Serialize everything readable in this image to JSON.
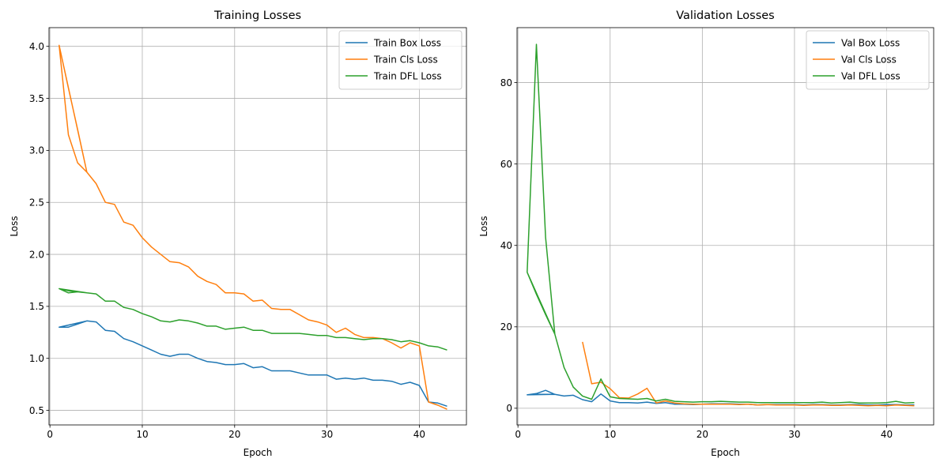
{
  "chart_data": [
    {
      "type": "line",
      "title": "Training Losses",
      "xlabel": "Epoch",
      "ylabel": "Loss",
      "xlim": [
        -0.1,
        45.1
      ],
      "ylim": [
        0.36,
        4.18
      ],
      "xticks": [
        0,
        10,
        20,
        30,
        40
      ],
      "yticks": [
        0.5,
        1.0,
        1.5,
        2.0,
        2.5,
        3.0,
        3.5,
        4.0
      ],
      "grid": true,
      "legend_position": "top-right",
      "series": [
        {
          "name": "Train Box Loss",
          "color": "#1f77b4",
          "x": [
            1,
            2,
            3,
            4,
            1,
            2,
            3,
            4,
            5,
            6,
            7,
            8,
            9,
            10,
            11,
            12,
            13,
            14,
            15,
            16,
            17,
            18,
            19,
            20,
            21,
            22,
            23,
            24,
            25,
            26,
            27,
            28,
            29,
            30,
            31,
            32,
            33,
            34,
            35,
            36,
            37,
            38,
            39,
            40,
            41,
            42,
            43
          ],
          "y": [
            1.3,
            1.3,
            1.33,
            1.36,
            1.3,
            1.32,
            1.34,
            1.36,
            1.35,
            1.27,
            1.26,
            1.19,
            1.16,
            1.12,
            1.08,
            1.04,
            1.02,
            1.04,
            1.04,
            1.0,
            0.97,
            0.96,
            0.94,
            0.94,
            0.95,
            0.91,
            0.92,
            0.88,
            0.88,
            0.88,
            0.86,
            0.84,
            0.84,
            0.84,
            0.8,
            0.81,
            0.8,
            0.81,
            0.79,
            0.79,
            0.78,
            0.75,
            0.77,
            0.74,
            0.58,
            0.57,
            0.54
          ]
        },
        {
          "name": "Train Cls Loss",
          "color": "#ff7f0e",
          "x": [
            1,
            2,
            3,
            4,
            1,
            2,
            3,
            4,
            5,
            6,
            7,
            8,
            9,
            10,
            11,
            12,
            13,
            14,
            15,
            16,
            17,
            18,
            19,
            20,
            21,
            22,
            23,
            24,
            25,
            26,
            27,
            28,
            29,
            30,
            31,
            32,
            33,
            34,
            35,
            36,
            37,
            38,
            39,
            40,
            41,
            42,
            43
          ],
          "y": [
            4.01,
            3.6,
            3.2,
            2.79,
            4.01,
            3.15,
            2.88,
            2.79,
            2.68,
            2.5,
            2.48,
            2.31,
            2.28,
            2.16,
            2.07,
            2.0,
            1.93,
            1.92,
            1.88,
            1.79,
            1.74,
            1.71,
            1.63,
            1.63,
            1.62,
            1.55,
            1.56,
            1.48,
            1.47,
            1.47,
            1.42,
            1.37,
            1.35,
            1.32,
            1.25,
            1.29,
            1.23,
            1.2,
            1.2,
            1.19,
            1.15,
            1.1,
            1.15,
            1.12,
            0.58,
            0.55,
            0.51
          ]
        },
        {
          "name": "Train DFL Loss",
          "color": "#2ca02c",
          "x": [
            1,
            2,
            3,
            4,
            1,
            2,
            3,
            4,
            5,
            6,
            7,
            8,
            9,
            10,
            11,
            12,
            13,
            14,
            15,
            16,
            17,
            18,
            19,
            20,
            21,
            22,
            23,
            24,
            25,
            26,
            27,
            28,
            29,
            30,
            31,
            32,
            33,
            34,
            35,
            36,
            37,
            38,
            39,
            40,
            41,
            42,
            43
          ],
          "y": [
            1.67,
            1.65,
            1.64,
            1.63,
            1.67,
            1.63,
            1.64,
            1.63,
            1.62,
            1.55,
            1.55,
            1.49,
            1.47,
            1.43,
            1.4,
            1.36,
            1.35,
            1.37,
            1.36,
            1.34,
            1.31,
            1.31,
            1.28,
            1.29,
            1.3,
            1.27,
            1.27,
            1.24,
            1.24,
            1.24,
            1.24,
            1.23,
            1.22,
            1.22,
            1.2,
            1.2,
            1.19,
            1.18,
            1.19,
            1.19,
            1.18,
            1.16,
            1.17,
            1.15,
            1.12,
            1.11,
            1.08
          ]
        }
      ]
    },
    {
      "type": "line",
      "title": "Validation Losses",
      "xlabel": "Epoch",
      "ylabel": "Loss",
      "xlim": [
        -0.1,
        45.1
      ],
      "ylim": [
        -4.1,
        93.5
      ],
      "xticks": [
        0,
        10,
        20,
        30,
        40
      ],
      "yticks": [
        0,
        20,
        40,
        60,
        80
      ],
      "grid": true,
      "legend_position": "top-right",
      "series": [
        {
          "name": "Val Box Loss",
          "color": "#1f77b4",
          "x": [
            1,
            2,
            3,
            4,
            1,
            2,
            3,
            4,
            5,
            6,
            7,
            8,
            9,
            10,
            11,
            12,
            13,
            14,
            15,
            16,
            17,
            18,
            19,
            20,
            21,
            22,
            23,
            24,
            25,
            26,
            27,
            28,
            29,
            30,
            31,
            32,
            33,
            34,
            35,
            36,
            37,
            38,
            39,
            40,
            41,
            42,
            43
          ],
          "y": [
            3.3,
            3.4,
            3.4,
            3.4,
            3.3,
            3.6,
            4.4,
            3.4,
            3.0,
            3.2,
            2.1,
            1.6,
            3.5,
            1.8,
            1.4,
            1.4,
            1.3,
            1.5,
            1.2,
            1.4,
            1.0,
            1.0,
            0.9,
            1.0,
            1.1,
            1.1,
            1.1,
            1.0,
            1.0,
            0.8,
            0.9,
            0.9,
            0.9,
            0.9,
            0.8,
            0.9,
            0.9,
            0.8,
            0.8,
            0.9,
            0.9,
            0.8,
            0.8,
            0.9,
            0.9,
            0.8,
            0.8
          ]
        },
        {
          "name": "Val Cls Loss",
          "color": "#ff7f0e",
          "x": [
            7,
            8,
            9,
            10,
            11,
            12,
            13,
            14,
            15,
            16,
            17,
            18,
            19,
            20,
            21,
            22,
            23,
            24,
            25,
            26,
            27,
            28,
            29,
            30,
            31,
            32,
            33,
            34,
            35,
            36,
            37,
            38,
            39,
            40,
            41,
            42,
            43
          ],
          "y": [
            16.3,
            6.0,
            6.4,
            4.8,
            2.6,
            2.5,
            3.5,
            4.9,
            1.3,
            1.8,
            1.3,
            1.1,
            1.0,
            1.0,
            1.0,
            1.0,
            1.0,
            0.9,
            1.0,
            0.8,
            0.9,
            0.8,
            0.8,
            0.8,
            0.7,
            0.8,
            0.8,
            0.7,
            0.7,
            0.8,
            0.7,
            0.6,
            0.7,
            0.6,
            0.8,
            0.7,
            0.6
          ]
        },
        {
          "name": "Val DFL Loss",
          "color": "#2ca02c",
          "x": [
            1,
            2,
            3,
            4,
            1,
            2,
            3,
            4,
            5,
            6,
            7,
            8,
            9,
            10,
            11,
            12,
            13,
            14,
            15,
            16,
            17,
            18,
            19,
            20,
            21,
            22,
            23,
            24,
            25,
            26,
            27,
            28,
            29,
            30,
            31,
            32,
            33,
            34,
            35,
            36,
            37,
            38,
            39,
            40,
            41,
            42,
            43
          ],
          "y": [
            33.4,
            28.0,
            23.0,
            18.2,
            33.4,
            89.4,
            42.0,
            18.2,
            10.0,
            5.2,
            3.0,
            2.2,
            7.2,
            2.8,
            2.4,
            2.3,
            2.2,
            2.4,
            1.8,
            2.2,
            1.7,
            1.6,
            1.5,
            1.6,
            1.6,
            1.7,
            1.6,
            1.5,
            1.5,
            1.4,
            1.4,
            1.4,
            1.4,
            1.4,
            1.4,
            1.4,
            1.5,
            1.3,
            1.4,
            1.5,
            1.3,
            1.3,
            1.3,
            1.4,
            1.7,
            1.3,
            1.4
          ]
        }
      ]
    }
  ]
}
